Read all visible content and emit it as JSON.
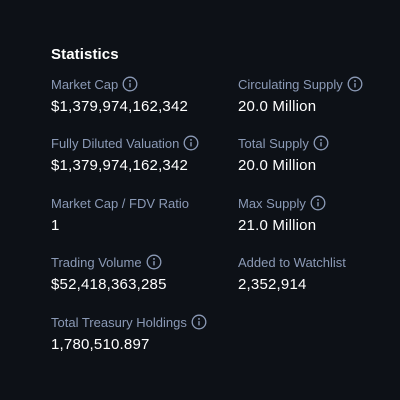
{
  "statistics": {
    "title": "Statistics",
    "items": [
      {
        "label": "Market Cap",
        "value": "$1,379,974,162,342",
        "info_icon": "info-icon"
      },
      {
        "label": "Circulating Supply",
        "value": "20.0 Million",
        "info_icon": "info-icon"
      },
      {
        "label": "Fully Diluted Valuation",
        "value": "$1,379,974,162,342",
        "info_icon": "info-icon"
      },
      {
        "label": "Total Supply",
        "value": "20.0 Million",
        "info_icon": "info-icon"
      },
      {
        "label": "Market Cap / FDV Ratio",
        "value": "1"
      },
      {
        "label": "Max Supply",
        "value": "21.0 Million",
        "info_icon": "info-icon"
      },
      {
        "label": "Trading Volume",
        "value": "$52,418,363,285",
        "info_icon": "info-icon"
      },
      {
        "label": "Added to Watchlist",
        "value": "2,352,914"
      },
      {
        "label": "Total Treasury Holdings",
        "value": "1,780,510.897",
        "info_icon": "info-icon"
      }
    ]
  },
  "colors": {
    "background": "#0d1117",
    "label": "#8b9ab6",
    "value": "#ffffff"
  }
}
